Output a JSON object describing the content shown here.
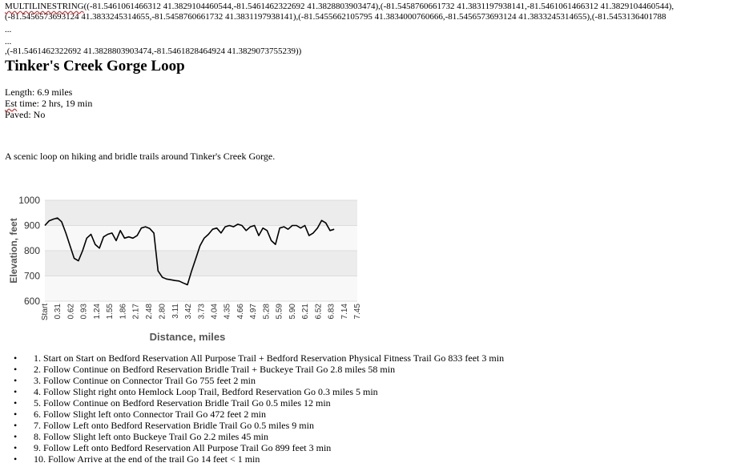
{
  "geometry": {
    "line1_prefix": "MULTILINESTRING",
    "line1_rest": "((-81.5461061466312 41.3829104460544,-81.5461462322692 41.3828803903474),(-81.5458760661732 41.3831197938141,-81.5461061466312 41.3829104460544),",
    "line2": "(-81.5456573693124 41.3833245314655,-81.5458760661732 41.3831197938141),(-81.5455662105795 41.3834000760666,-81.5456573693124 41.3833245314655),(-81.5453136401788",
    "ellipsis1": "...",
    "ellipsis2": "...",
    "line_last": ",(-81.5461462322692 41.3828803903474,-81.5461828464924 41.3829073755239))"
  },
  "trail": {
    "title": "Tinker's Creek Gorge Loop",
    "length": "Length: 6.9 miles",
    "est_label": "Est",
    "est_rest": " time: 2 hrs, 19 min",
    "paved": "Paved: No",
    "description": "A scenic loop on hiking and bridle trails around Tinker's Creek Gorge."
  },
  "chart_data": {
    "type": "line",
    "xlabel": "Distance, miles",
    "ylabel": "Elevation, feet",
    "ylim": [
      600,
      1000
    ],
    "yticks": [
      600,
      700,
      800,
      900,
      1000
    ],
    "xlim": [
      0,
      7.45
    ],
    "xtick_values": [
      0,
      0.31,
      0.62,
      0.93,
      1.24,
      1.55,
      1.86,
      2.17,
      2.48,
      2.8,
      3.11,
      3.42,
      3.73,
      4.04,
      4.35,
      4.66,
      4.97,
      5.28,
      5.59,
      5.9,
      6.21,
      6.52,
      6.83,
      7.14,
      7.45
    ],
    "xtick_labels": [
      "Start",
      "0.31",
      "0.62",
      "0.93",
      "1.24",
      "1.55",
      "1.86",
      "2.17",
      "2.48",
      "2.80",
      "3.11",
      "3.42",
      "3.73",
      "4.04",
      "4.35",
      "4.66",
      "4.97",
      "5.28",
      "5.59",
      "5.90",
      "6.21",
      "6.52",
      "6.83",
      "7.14",
      "7.45"
    ],
    "grid": "alternating horizontal bands",
    "series": [
      {
        "color": "#000000",
        "x": [
          0.0,
          0.1,
          0.2,
          0.3,
          0.4,
          0.5,
          0.6,
          0.7,
          0.8,
          0.9,
          1.0,
          1.1,
          1.2,
          1.3,
          1.4,
          1.5,
          1.6,
          1.7,
          1.8,
          1.9,
          2.0,
          2.1,
          2.2,
          2.3,
          2.4,
          2.5,
          2.6,
          2.7,
          2.8,
          2.9,
          3.0,
          3.1,
          3.2,
          3.3,
          3.4,
          3.5,
          3.6,
          3.7,
          3.8,
          3.9,
          4.0,
          4.1,
          4.2,
          4.3,
          4.4,
          4.5,
          4.6,
          4.7,
          4.8,
          4.9,
          5.0,
          5.1,
          5.2,
          5.3,
          5.4,
          5.5,
          5.6,
          5.7,
          5.8,
          5.9,
          6.0,
          6.1,
          6.2,
          6.3,
          6.4,
          6.5,
          6.6,
          6.7,
          6.8,
          6.9
        ],
        "y": [
          900,
          918,
          925,
          930,
          915,
          870,
          820,
          770,
          760,
          800,
          850,
          865,
          825,
          810,
          855,
          865,
          870,
          840,
          880,
          850,
          855,
          850,
          860,
          890,
          895,
          888,
          870,
          720,
          695,
          688,
          685,
          682,
          680,
          672,
          665,
          720,
          770,
          820,
          850,
          865,
          885,
          890,
          870,
          895,
          900,
          895,
          905,
          900,
          880,
          895,
          900,
          860,
          890,
          880,
          840,
          825,
          890,
          895,
          885,
          900,
          900,
          890,
          900,
          860,
          870,
          890,
          920,
          910,
          880,
          885
        ]
      }
    ]
  },
  "directions": [
    "1. Start on Start on Bedford Reservation All Purpose Trail + Bedford Reservation Physical Fitness Trail Go 833 feet 3 min",
    "2. Follow Continue on Bedford Reservation Bridle Trail + Buckeye Trail Go 2.8 miles 58 min",
    "3. Follow Continue on Connector Trail Go 755 feet 2 min",
    "4. Follow Slight right onto Hemlock Loop Trail, Bedford Reservation Go 0.3 miles 5 min",
    "5. Follow Continue on Bedford Reservation Bridle Trail Go 0.5 miles 12 min",
    "6. Follow Slight left onto Connector Trail Go 472 feet 2 min",
    "7. Follow Left onto Bedford Reservation Bridle Trail Go 0.5 miles 9 min",
    "8. Follow Slight left onto Buckeye Trail Go 2.2 miles 45 min",
    "9. Follow Left onto Bedford Reservation All Purpose Trail Go 899 feet 3 min",
    "10. Follow Arrive at the end of the trail Go 14 feet < 1 min"
  ]
}
